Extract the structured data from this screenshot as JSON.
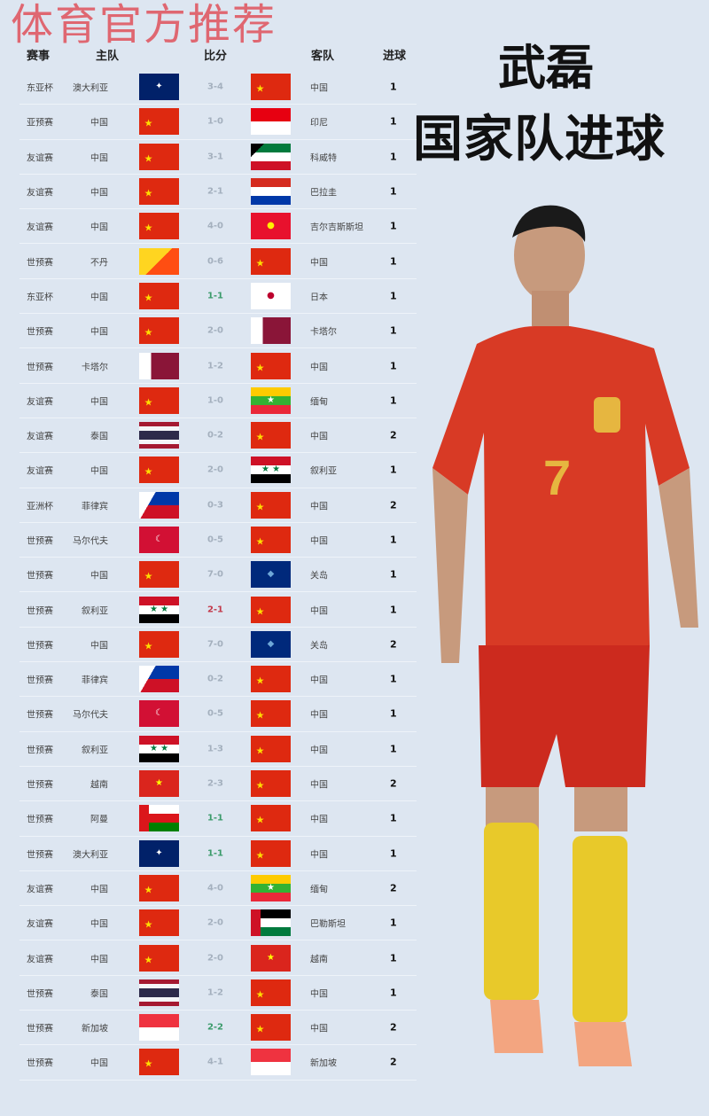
{
  "watermark": "体育官方推荐",
  "title": {
    "name": "武磊",
    "subtitle": "国家队进球"
  },
  "headers": {
    "competition": "赛事",
    "home": "主队",
    "score": "比分",
    "away": "客队",
    "goals": "进球"
  },
  "score_colors": {
    "normal": "#a4b0be",
    "draw": "#3b9b6b",
    "loss": "#c33a4b"
  },
  "rows": [
    {
      "competition": "东亚杯",
      "home": "澳大利亚",
      "home_flag": "au",
      "score": "3-4",
      "away": "中国",
      "away_flag": "cn",
      "goals": "1",
      "result": "normal"
    },
    {
      "competition": "亚预赛",
      "home": "中国",
      "home_flag": "cn",
      "score": "1-0",
      "away": "印尼",
      "away_flag": "id",
      "goals": "1",
      "result": "normal"
    },
    {
      "competition": "友谊赛",
      "home": "中国",
      "home_flag": "cn",
      "score": "3-1",
      "away": "科威特",
      "away_flag": "kw",
      "goals": "1",
      "result": "normal"
    },
    {
      "competition": "友谊赛",
      "home": "中国",
      "home_flag": "cn",
      "score": "2-1",
      "away": "巴拉圭",
      "away_flag": "py",
      "goals": "1",
      "result": "normal"
    },
    {
      "competition": "友谊赛",
      "home": "中国",
      "home_flag": "cn",
      "score": "4-0",
      "away": "吉尔吉斯斯坦",
      "away_flag": "kg",
      "goals": "1",
      "result": "normal"
    },
    {
      "competition": "世预赛",
      "home": "不丹",
      "home_flag": "bt",
      "score": "0-6",
      "away": "中国",
      "away_flag": "cn",
      "goals": "1",
      "result": "normal"
    },
    {
      "competition": "东亚杯",
      "home": "中国",
      "home_flag": "cn",
      "score": "1-1",
      "away": "日本",
      "away_flag": "jp",
      "goals": "1",
      "result": "draw"
    },
    {
      "competition": "世预赛",
      "home": "中国",
      "home_flag": "cn",
      "score": "2-0",
      "away": "卡塔尔",
      "away_flag": "qa",
      "goals": "1",
      "result": "normal"
    },
    {
      "competition": "世预赛",
      "home": "卡塔尔",
      "home_flag": "qa",
      "score": "1-2",
      "away": "中国",
      "away_flag": "cn",
      "goals": "1",
      "result": "normal"
    },
    {
      "competition": "友谊赛",
      "home": "中国",
      "home_flag": "cn",
      "score": "1-0",
      "away": "缅甸",
      "away_flag": "mm",
      "goals": "1",
      "result": "normal"
    },
    {
      "competition": "友谊赛",
      "home": "泰国",
      "home_flag": "th",
      "score": "0-2",
      "away": "中国",
      "away_flag": "cn",
      "goals": "2",
      "result": "normal"
    },
    {
      "competition": "友谊赛",
      "home": "中国",
      "home_flag": "cn",
      "score": "2-0",
      "away": "叙利亚",
      "away_flag": "sy",
      "goals": "1",
      "result": "normal"
    },
    {
      "competition": "亚洲杯",
      "home": "菲律宾",
      "home_flag": "ph",
      "score": "0-3",
      "away": "中国",
      "away_flag": "cn",
      "goals": "2",
      "result": "normal"
    },
    {
      "competition": "世预赛",
      "home": "马尔代夫",
      "home_flag": "mv",
      "score": "0-5",
      "away": "中国",
      "away_flag": "cn",
      "goals": "1",
      "result": "normal"
    },
    {
      "competition": "世预赛",
      "home": "中国",
      "home_flag": "cn",
      "score": "7-0",
      "away": "关岛",
      "away_flag": "gu",
      "goals": "1",
      "result": "normal"
    },
    {
      "competition": "世预赛",
      "home": "叙利亚",
      "home_flag": "sy",
      "score": "2-1",
      "away": "中国",
      "away_flag": "cn",
      "goals": "1",
      "result": "loss"
    },
    {
      "competition": "世预赛",
      "home": "中国",
      "home_flag": "cn",
      "score": "7-0",
      "away": "关岛",
      "away_flag": "gu",
      "goals": "2",
      "result": "normal"
    },
    {
      "competition": "世预赛",
      "home": "菲律宾",
      "home_flag": "ph",
      "score": "0-2",
      "away": "中国",
      "away_flag": "cn",
      "goals": "1",
      "result": "normal"
    },
    {
      "competition": "世预赛",
      "home": "马尔代夫",
      "home_flag": "mv",
      "score": "0-5",
      "away": "中国",
      "away_flag": "cn",
      "goals": "1",
      "result": "normal"
    },
    {
      "competition": "世预赛",
      "home": "叙利亚",
      "home_flag": "sy",
      "score": "1-3",
      "away": "中国",
      "away_flag": "cn",
      "goals": "1",
      "result": "normal"
    },
    {
      "competition": "世预赛",
      "home": "越南",
      "home_flag": "vn",
      "score": "2-3",
      "away": "中国",
      "away_flag": "cn",
      "goals": "2",
      "result": "normal"
    },
    {
      "competition": "世预赛",
      "home": "阿曼",
      "home_flag": "om",
      "score": "1-1",
      "away": "中国",
      "away_flag": "cn",
      "goals": "1",
      "result": "draw"
    },
    {
      "competition": "世预赛",
      "home": "澳大利亚",
      "home_flag": "au",
      "score": "1-1",
      "away": "中国",
      "away_flag": "cn",
      "goals": "1",
      "result": "draw"
    },
    {
      "competition": "友谊赛",
      "home": "中国",
      "home_flag": "cn",
      "score": "4-0",
      "away": "缅甸",
      "away_flag": "mm",
      "goals": "2",
      "result": "normal"
    },
    {
      "competition": "友谊赛",
      "home": "中国",
      "home_flag": "cn",
      "score": "2-0",
      "away": "巴勒斯坦",
      "away_flag": "ps",
      "goals": "1",
      "result": "normal"
    },
    {
      "competition": "友谊赛",
      "home": "中国",
      "home_flag": "cn",
      "score": "2-0",
      "away": "越南",
      "away_flag": "vn",
      "goals": "1",
      "result": "normal"
    },
    {
      "competition": "世预赛",
      "home": "泰国",
      "home_flag": "th",
      "score": "1-2",
      "away": "中国",
      "away_flag": "cn",
      "goals": "1",
      "result": "normal"
    },
    {
      "competition": "世预赛",
      "home": "新加坡",
      "home_flag": "sg",
      "score": "2-2",
      "away": "中国",
      "away_flag": "cn",
      "goals": "2",
      "result": "draw"
    },
    {
      "competition": "世预赛",
      "home": "中国",
      "home_flag": "cn",
      "score": "4-1",
      "away": "新加坡",
      "away_flag": "sg",
      "goals": "2",
      "result": "normal"
    }
  ]
}
